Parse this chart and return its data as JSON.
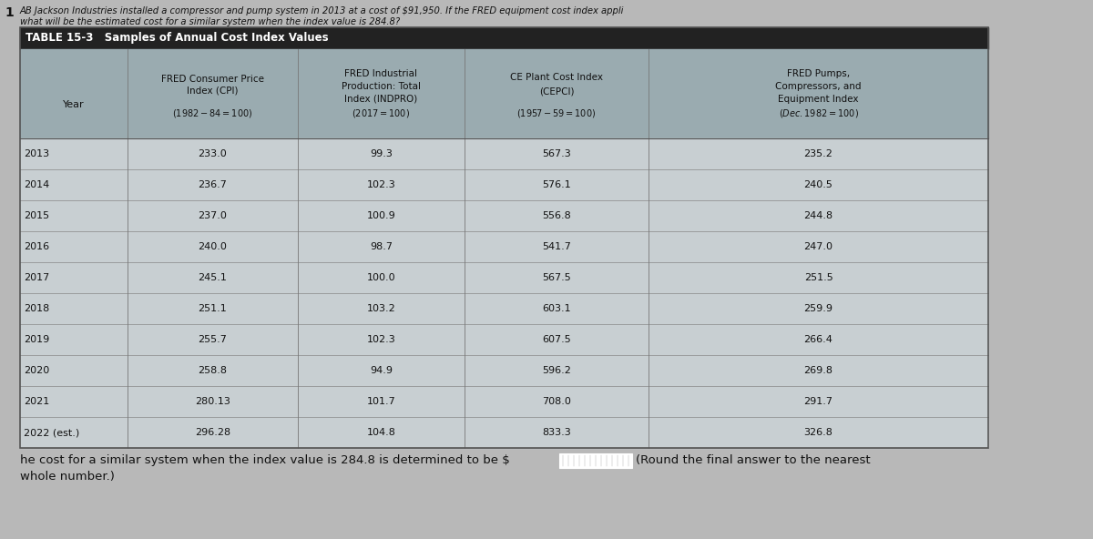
{
  "title_line1": "AB Jackson Industries installed a compressor and pump system in 2013 at a cost of $91,950. If the FRED equipment cost index appli",
  "title_line2": "what will be the estimated cost for a similar system when the index value is 284.8?",
  "table_title": "TABLE 15-3   Samples of Annual Cost Index Values",
  "years": [
    "2013",
    "2014",
    "2015",
    "2016",
    "2017",
    "2018",
    "2019",
    "2020",
    "2021",
    "2022 (est.)"
  ],
  "cpi": [
    "233.0",
    "236.7",
    "237.0",
    "240.0",
    "245.1",
    "251.1",
    "255.7",
    "258.8",
    "280.13",
    "296.28"
  ],
  "indpro": [
    "99.3",
    "102.3",
    "100.9",
    "98.7",
    "100.0",
    "103.2",
    "102.3",
    "94.9",
    "101.7",
    "104.8"
  ],
  "cepci": [
    "567.3",
    "576.1",
    "556.8",
    "541.7",
    "567.5",
    "603.1",
    "607.5",
    "596.2",
    "708.0",
    "833.3"
  ],
  "pumps": [
    "235.2",
    "240.5",
    "244.8",
    "247.0",
    "251.5",
    "259.9",
    "266.4",
    "269.8",
    "291.7",
    "326.8"
  ],
  "bg_color": "#b8b8b8",
  "table_title_bar_color": "#222222",
  "table_header_bg": "#9aabb0",
  "table_body_bg": "#c8cfd2",
  "row_line_color": "#888888",
  "text_dark": "#111111",
  "text_white": "#ffffff",
  "footer_text1": "he cost for a similar system when the index value is 284.8 is determined to be $",
  "footer_text2": "(Round the final answer to the nearest",
  "footer_text3": "whole number.)"
}
